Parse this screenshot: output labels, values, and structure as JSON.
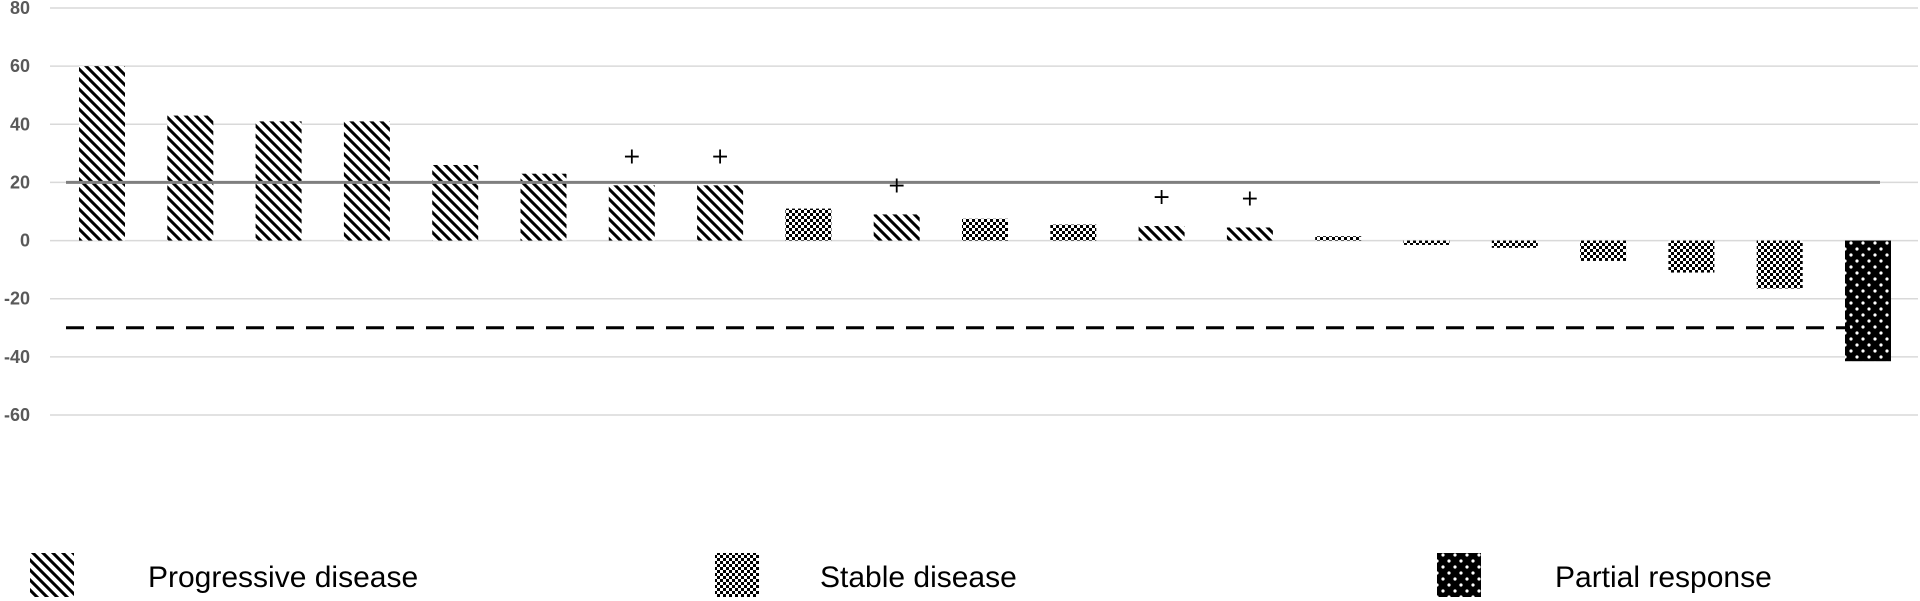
{
  "chart_data": {
    "type": "bar",
    "title": "",
    "xlabel": "",
    "ylabel": "",
    "ylim": [
      -60,
      80
    ],
    "yticks": [
      80,
      60,
      40,
      20,
      0,
      -20,
      -40,
      -60
    ],
    "grid": true,
    "bars": [
      {
        "value": 60,
        "category": "Progressive disease",
        "marker": ""
      },
      {
        "value": 43,
        "category": "Progressive disease",
        "marker": ""
      },
      {
        "value": 41,
        "category": "Progressive disease",
        "marker": ""
      },
      {
        "value": 41,
        "category": "Progressive disease",
        "marker": ""
      },
      {
        "value": 26,
        "category": "Progressive disease",
        "marker": ""
      },
      {
        "value": 23,
        "category": "Progressive disease",
        "marker": ""
      },
      {
        "value": 19,
        "category": "Progressive disease",
        "marker": "+"
      },
      {
        "value": 19,
        "category": "Progressive disease",
        "marker": "+"
      },
      {
        "value": 11,
        "category": "Stable disease",
        "marker": ""
      },
      {
        "value": 9,
        "category": "Progressive disease",
        "marker": "+"
      },
      {
        "value": 7.5,
        "category": "Stable disease",
        "marker": ""
      },
      {
        "value": 5.5,
        "category": "Stable disease",
        "marker": ""
      },
      {
        "value": 5,
        "category": "Progressive disease",
        "marker": "+"
      },
      {
        "value": 4.5,
        "category": "Progressive disease",
        "marker": "+"
      },
      {
        "value": 1.5,
        "category": "Stable disease",
        "marker": ""
      },
      {
        "value": -1.5,
        "category": "Stable disease",
        "marker": ""
      },
      {
        "value": -2.5,
        "category": "Stable disease",
        "marker": ""
      },
      {
        "value": -7,
        "category": "Stable disease",
        "marker": ""
      },
      {
        "value": -11,
        "category": "Stable disease",
        "marker": ""
      },
      {
        "value": -16.5,
        "category": "Stable disease",
        "marker": ""
      },
      {
        "value": -41.5,
        "category": "Partial response",
        "marker": ""
      }
    ],
    "reference_lines": [
      {
        "value": 20,
        "style": "solid"
      },
      {
        "value": -30,
        "style": "dashed"
      }
    ],
    "legend": {
      "position": "bottom",
      "entries": [
        {
          "label": "Progressive disease",
          "pattern": "diagonal"
        },
        {
          "label": "Stable disease",
          "pattern": "checker"
        },
        {
          "label": "Partial response",
          "pattern": "dots"
        }
      ]
    }
  }
}
